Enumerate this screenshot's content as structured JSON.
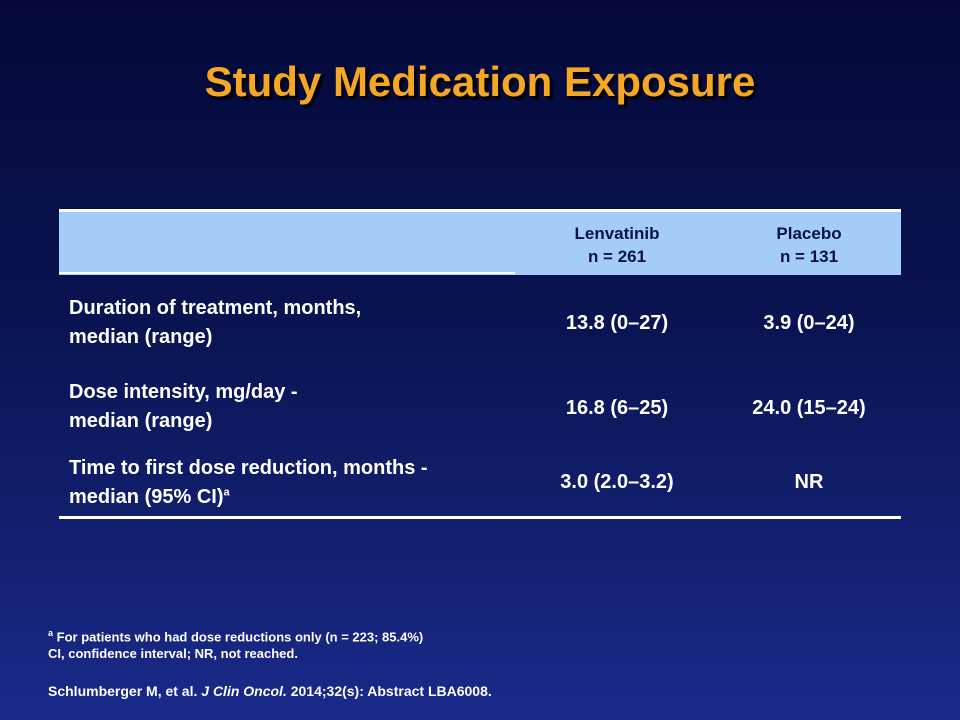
{
  "title": "Study Medication Exposure",
  "table": {
    "columns": [
      {
        "name": "Lenvatinib",
        "n": "n = 261"
      },
      {
        "name": "Placebo",
        "n": "n = 131"
      }
    ],
    "rows": [
      {
        "label_line1": "Duration of treatment, months,",
        "label_line2": "median (range)",
        "lenvatinib": "13.8 (0–27)",
        "placebo": "3.9 (0–24)"
      },
      {
        "label_line1": "Dose intensity, mg/day -",
        "label_line2": "median (range)",
        "lenvatinib": "16.8 (6–25)",
        "placebo": "24.0 (15–24)"
      },
      {
        "label_line1": "Time to first dose reduction, months -",
        "label_line2": "median (95% CI)",
        "label_sup": "a",
        "lenvatinib": "3.0 (2.0–3.2)",
        "placebo": "NR"
      }
    ]
  },
  "footnotes": {
    "a_marker": "a",
    "a_text": "For patients who had dose reductions only (n = 223; 85.4%)",
    "abbrev": "CI, confidence interval; NR, not reached."
  },
  "citation": {
    "authors": "Schlumberger M, et al.",
    "journal": "J Clin Oncol.",
    "details": "2014;32(s): Abstract LBA6008."
  }
}
